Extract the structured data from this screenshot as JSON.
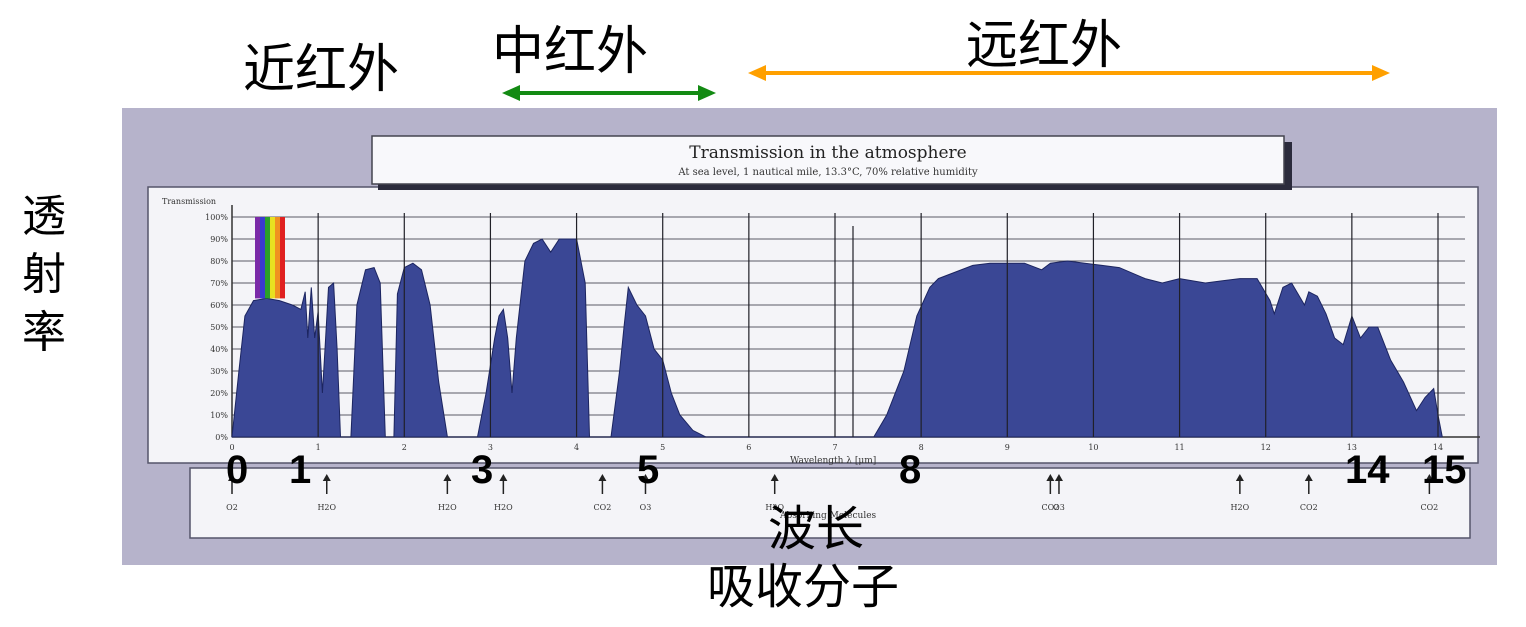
{
  "band_labels": {
    "near": "近红外",
    "mid": "中红外",
    "far": "远红外"
  },
  "side_label": [
    "透",
    "射",
    "率"
  ],
  "bottom_labels": {
    "wavelength": "波长",
    "absorbers": "吸收分子"
  },
  "overlay_ticks": [
    "0",
    "1",
    "3",
    "5",
    "8",
    "14",
    "15"
  ],
  "colors": {
    "near_arrow": "#ff3300",
    "mid_arrow": "#138a13",
    "far_arrow": "#ffa000",
    "fill": "#3a4795",
    "frame": "#b6b3cb"
  },
  "figure": {
    "title": "Transmission in the atmosphere",
    "subtitle": "At sea level, 1 nautical mile, 13.3°C, 70% relative humidity",
    "xlabel": "Wavelength λ [μm]",
    "ylabel": "Transmission",
    "absorbers_title": "Absorbing Molecules"
  },
  "chart_data": {
    "type": "area",
    "title": "Transmission in the atmosphere",
    "subtitle": "At sea level, 1 nautical mile, 13.3°C, 70% relative humidity",
    "xlabel": "Wavelength λ [μm]",
    "ylabel": "Transmission",
    "xlim": [
      0,
      14
    ],
    "ylim": [
      0,
      100
    ],
    "x_ticks": [
      "0",
      "1",
      "2",
      "3",
      "4",
      "5",
      "6",
      "7",
      "8",
      "9",
      "10",
      "11",
      "12",
      "13",
      "14"
    ],
    "y_ticks": [
      "0%",
      "10%",
      "20%",
      "30%",
      "40%",
      "50%",
      "60%",
      "70%",
      "80%",
      "90%",
      "100%"
    ],
    "grid": true,
    "series": [
      {
        "values": [
          [
            0.0,
            0
          ],
          [
            0.08,
            30
          ],
          [
            0.15,
            55
          ],
          [
            0.25,
            62
          ],
          [
            0.4,
            63
          ],
          [
            0.55,
            62
          ],
          [
            0.7,
            60
          ],
          [
            0.8,
            58
          ],
          [
            0.85,
            66
          ],
          [
            0.88,
            45
          ],
          [
            0.92,
            68
          ],
          [
            0.96,
            45
          ],
          [
            1.0,
            57
          ],
          [
            1.05,
            20
          ],
          [
            1.08,
            40
          ],
          [
            1.12,
            68
          ],
          [
            1.18,
            70
          ],
          [
            1.22,
            40
          ],
          [
            1.26,
            0
          ],
          [
            1.38,
            0
          ],
          [
            1.45,
            60
          ],
          [
            1.55,
            76
          ],
          [
            1.65,
            77
          ],
          [
            1.72,
            70
          ],
          [
            1.78,
            0
          ],
          [
            1.88,
            0
          ],
          [
            1.92,
            65
          ],
          [
            2.0,
            77
          ],
          [
            2.1,
            79
          ],
          [
            2.2,
            76
          ],
          [
            2.3,
            60
          ],
          [
            2.4,
            25
          ],
          [
            2.5,
            0
          ],
          [
            2.85,
            0
          ],
          [
            2.95,
            20
          ],
          [
            3.05,
            45
          ],
          [
            3.1,
            55
          ],
          [
            3.15,
            58
          ],
          [
            3.2,
            45
          ],
          [
            3.25,
            20
          ],
          [
            3.3,
            45
          ],
          [
            3.4,
            80
          ],
          [
            3.5,
            88
          ],
          [
            3.6,
            90
          ],
          [
            3.7,
            84
          ],
          [
            3.8,
            90
          ],
          [
            3.9,
            90
          ],
          [
            4.0,
            90
          ],
          [
            4.1,
            70
          ],
          [
            4.15,
            0
          ],
          [
            4.4,
            0
          ],
          [
            4.5,
            30
          ],
          [
            4.55,
            50
          ],
          [
            4.6,
            68
          ],
          [
            4.7,
            60
          ],
          [
            4.8,
            55
          ],
          [
            4.9,
            40
          ],
          [
            5.0,
            35
          ],
          [
            5.1,
            20
          ],
          [
            5.2,
            10
          ],
          [
            5.35,
            3
          ],
          [
            5.5,
            0
          ],
          [
            7.45,
            0
          ],
          [
            7.6,
            10
          ],
          [
            7.8,
            30
          ],
          [
            7.95,
            55
          ],
          [
            8.1,
            68
          ],
          [
            8.2,
            72
          ],
          [
            8.4,
            75
          ],
          [
            8.6,
            78
          ],
          [
            8.8,
            79
          ],
          [
            9.0,
            79
          ],
          [
            9.2,
            79
          ],
          [
            9.4,
            76
          ],
          [
            9.5,
            79
          ],
          [
            9.7,
            80
          ],
          [
            9.9,
            79
          ],
          [
            10.1,
            78
          ],
          [
            10.3,
            77
          ],
          [
            10.6,
            72
          ],
          [
            10.8,
            70
          ],
          [
            11.0,
            72
          ],
          [
            11.3,
            70
          ],
          [
            11.5,
            71
          ],
          [
            11.7,
            72
          ],
          [
            11.9,
            72
          ],
          [
            12.05,
            62
          ],
          [
            12.1,
            56
          ],
          [
            12.2,
            68
          ],
          [
            12.3,
            70
          ],
          [
            12.45,
            60
          ],
          [
            12.5,
            66
          ],
          [
            12.6,
            64
          ],
          [
            12.7,
            56
          ],
          [
            12.8,
            45
          ],
          [
            12.9,
            42
          ],
          [
            13.0,
            55
          ],
          [
            13.1,
            45
          ],
          [
            13.2,
            50
          ],
          [
            13.3,
            50
          ],
          [
            13.45,
            35
          ],
          [
            13.6,
            25
          ],
          [
            13.75,
            12
          ],
          [
            13.85,
            18
          ],
          [
            13.95,
            22
          ],
          [
            14.0,
            10
          ],
          [
            14.05,
            0
          ]
        ]
      }
    ],
    "absorbing_molecules": [
      {
        "x": 0.0,
        "label": "O2"
      },
      {
        "x": 1.1,
        "label": "H2O"
      },
      {
        "x": 2.5,
        "label": "H2O"
      },
      {
        "x": 3.15,
        "label": "H2O"
      },
      {
        "x": 4.3,
        "label": "CO2"
      },
      {
        "x": 4.8,
        "label": "O3"
      },
      {
        "x": 6.3,
        "label": "H2O"
      },
      {
        "x": 9.5,
        "label": "CO2"
      },
      {
        "x": 9.6,
        "label": "O3"
      },
      {
        "x": 11.7,
        "label": "H2O"
      },
      {
        "x": 12.5,
        "label": "CO2"
      },
      {
        "x": 13.9,
        "label": "CO2"
      }
    ]
  }
}
